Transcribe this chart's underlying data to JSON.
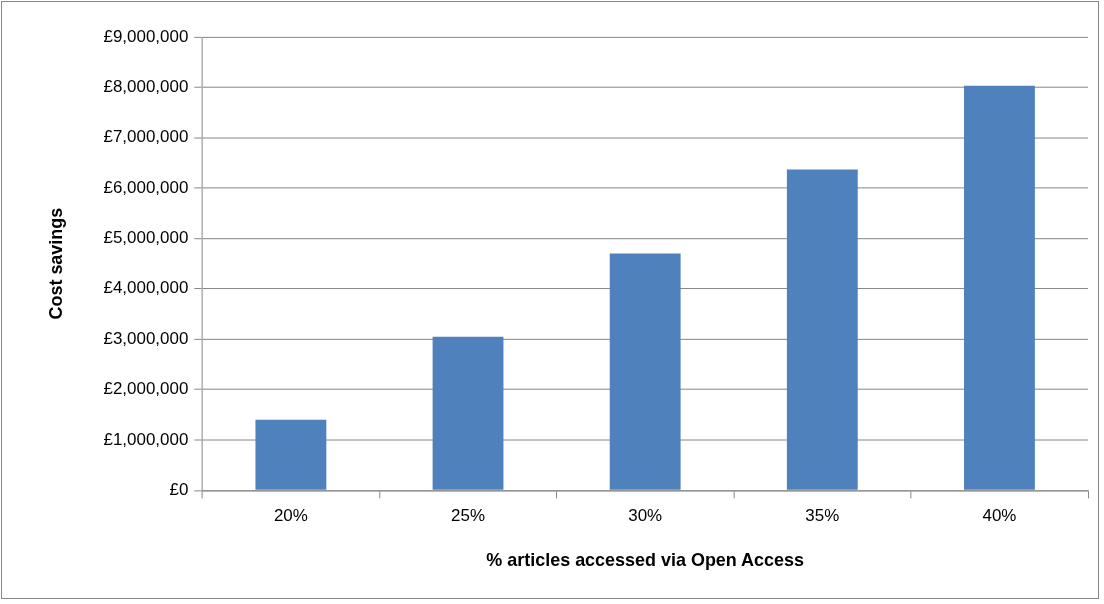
{
  "chart_data": {
    "type": "bar",
    "xlabel": "% articles accessed via Open Access",
    "ylabel": "Cost savings",
    "categories": [
      "20%",
      "25%",
      "30%",
      "35%",
      "40%"
    ],
    "values": [
      1400000,
      3050000,
      4700000,
      6370000,
      8030000
    ],
    "color": "#4f81bd",
    "ylim": [
      0,
      9000000
    ],
    "yticks": [
      {
        "value": 0,
        "label": "£0"
      },
      {
        "value": 1000000,
        "label": "£1,000,000"
      },
      {
        "value": 2000000,
        "label": "£2,000,000"
      },
      {
        "value": 3000000,
        "label": "£3,000,000"
      },
      {
        "value": 4000000,
        "label": "£4,000,000"
      },
      {
        "value": 5000000,
        "label": "£5,000,000"
      },
      {
        "value": 6000000,
        "label": "£6,000,000"
      },
      {
        "value": 7000000,
        "label": "£7,000,000"
      },
      {
        "value": 8000000,
        "label": "£8,000,000"
      },
      {
        "value": 9000000,
        "label": "£9,000,000"
      }
    ],
    "grid": "y"
  }
}
